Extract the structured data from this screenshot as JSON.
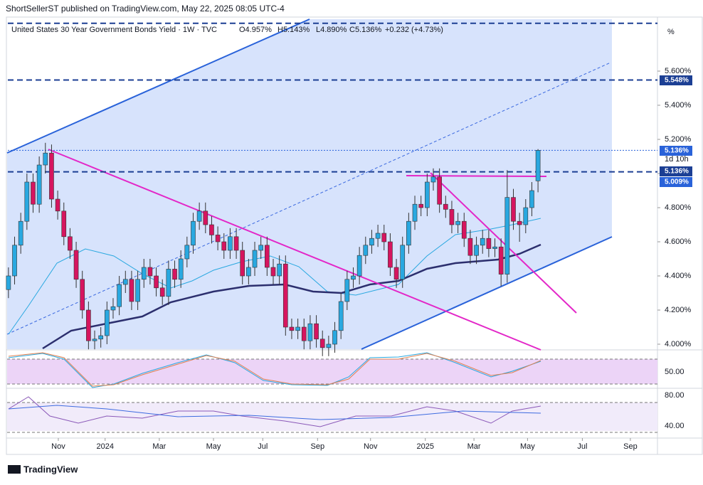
{
  "header": {
    "publisher": "ShortSellerST published on TradingView.com, May 22, 2025 08:05 UTC-4",
    "brand": "TradingView"
  },
  "chart_data": {
    "type": "candlestick",
    "title": "United States 30 Year Government Bonds Yield · 1W · TVC",
    "legend": {
      "open": "O4.957%",
      "high": "H5.143%",
      "low": "L4.890%",
      "close": "C5.136%",
      "change": "+0.232 (+4.73%)"
    },
    "unit": "%",
    "open": [
      4.32,
      4.4,
      4.58,
      4.72,
      4.95,
      4.82,
      5.05,
      5.12,
      4.85,
      4.78,
      4.63,
      4.55,
      4.38,
      4.2,
      4.02,
      4.03,
      4.05,
      4.2,
      4.22,
      4.35,
      4.38,
      4.25,
      4.38,
      4.45,
      4.4,
      4.33,
      4.28,
      4.44,
      4.38,
      4.5,
      4.58,
      4.72,
      4.78,
      4.7,
      4.64,
      4.6,
      4.55,
      4.63,
      4.55,
      4.4,
      4.45,
      4.55,
      4.58,
      4.45,
      4.4,
      4.47,
      4.1,
      4.08,
      4.1,
      4.02,
      4.12,
      4.03,
      3.98,
      4.0,
      4.08,
      4.25,
      4.38,
      4.4,
      4.52,
      4.58,
      4.62,
      4.65,
      4.6,
      4.45,
      4.38,
      4.58,
      4.72,
      4.82,
      4.8,
      4.95,
      4.98,
      4.82,
      4.79,
      4.7,
      4.72,
      4.62,
      4.52,
      4.58,
      4.62,
      4.56,
      4.57,
      4.41,
      4.86,
      4.72,
      4.7,
      4.8,
      4.957
    ],
    "high": [
      4.45,
      4.63,
      4.77,
      5.0,
      5.0,
      5.1,
      5.18,
      5.17,
      4.9,
      4.83,
      4.68,
      4.6,
      4.43,
      4.25,
      4.08,
      4.1,
      4.25,
      4.27,
      4.4,
      4.43,
      4.43,
      4.43,
      4.5,
      4.5,
      4.45,
      4.38,
      4.49,
      4.49,
      4.55,
      4.63,
      4.77,
      4.83,
      4.83,
      4.75,
      4.69,
      4.65,
      4.68,
      4.68,
      4.6,
      4.5,
      4.6,
      4.63,
      4.63,
      4.5,
      4.52,
      4.52,
      4.15,
      4.15,
      4.15,
      4.17,
      4.17,
      4.08,
      4.05,
      4.13,
      4.3,
      4.43,
      4.45,
      4.57,
      4.63,
      4.67,
      4.7,
      4.7,
      4.65,
      4.5,
      4.63,
      4.77,
      4.87,
      4.87,
      5.0,
      5.03,
      5.03,
      4.87,
      4.84,
      4.77,
      4.77,
      4.67,
      4.63,
      4.67,
      4.67,
      4.62,
      4.62,
      5.02,
      4.91,
      4.77,
      4.85,
      4.95,
      5.143
    ],
    "low": [
      4.27,
      4.35,
      4.53,
      4.67,
      4.77,
      4.77,
      5.0,
      4.8,
      4.73,
      4.58,
      4.5,
      4.33,
      4.15,
      3.97,
      3.97,
      3.98,
      4.0,
      4.15,
      4.17,
      4.3,
      4.2,
      4.2,
      4.33,
      4.35,
      4.28,
      4.23,
      4.23,
      4.33,
      4.33,
      4.45,
      4.53,
      4.67,
      4.65,
      4.59,
      4.55,
      4.5,
      4.5,
      4.5,
      4.35,
      4.35,
      4.4,
      4.5,
      4.4,
      4.35,
      4.35,
      4.05,
      4.03,
      4.03,
      3.97,
      3.97,
      3.98,
      3.93,
      3.93,
      3.95,
      4.03,
      4.2,
      4.33,
      4.35,
      4.47,
      4.53,
      4.57,
      4.55,
      4.4,
      4.33,
      4.33,
      4.53,
      4.67,
      4.75,
      4.75,
      4.9,
      4.77,
      4.74,
      4.65,
      4.65,
      4.57,
      4.47,
      4.47,
      4.53,
      4.51,
      4.51,
      4.34,
      4.36,
      4.67,
      4.6,
      4.65,
      4.75,
      4.89
    ],
    "close": [
      4.4,
      4.58,
      4.72,
      4.95,
      4.82,
      5.05,
      5.12,
      4.85,
      4.78,
      4.63,
      4.55,
      4.38,
      4.2,
      4.02,
      4.03,
      4.05,
      4.2,
      4.22,
      4.35,
      4.38,
      4.25,
      4.38,
      4.45,
      4.4,
      4.33,
      4.28,
      4.44,
      4.38,
      4.5,
      4.58,
      4.72,
      4.78,
      4.7,
      4.64,
      4.6,
      4.55,
      4.63,
      4.55,
      4.4,
      4.45,
      4.55,
      4.58,
      4.45,
      4.4,
      4.47,
      4.1,
      4.08,
      4.1,
      4.02,
      4.12,
      4.03,
      3.98,
      4.0,
      4.08,
      4.25,
      4.38,
      4.4,
      4.52,
      4.58,
      4.62,
      4.65,
      4.6,
      4.45,
      4.38,
      4.58,
      4.72,
      4.82,
      4.8,
      4.95,
      4.98,
      4.82,
      4.79,
      4.7,
      4.72,
      4.62,
      4.52,
      4.58,
      4.62,
      4.56,
      4.57,
      4.41,
      4.86,
      4.72,
      4.7,
      4.8,
      4.9,
      5.136
    ],
    "colors": {
      "up": "#29a8e0",
      "down": "#d6155f"
    },
    "xlim": [
      -0.1,
      105.4
    ],
    "xticks": [
      {
        "value": 8.1,
        "label": "Nov"
      },
      {
        "value": 15.7,
        "label": "2024"
      },
      {
        "value": 24.5,
        "label": "Mar"
      },
      {
        "value": 33.3,
        "label": "May"
      },
      {
        "value": 41.3,
        "label": "Jul"
      },
      {
        "value": 50.2,
        "label": "Sep"
      },
      {
        "value": 58.8,
        "label": "Nov"
      },
      {
        "value": 67.7,
        "label": "2025"
      },
      {
        "value": 75.6,
        "label": "Mar"
      },
      {
        "value": 84.3,
        "label": "May"
      },
      {
        "value": 93.2,
        "label": "Jul"
      },
      {
        "value": 101,
        "label": "Sep"
      }
    ],
    "ylim": [
      3.975,
      5.9
    ],
    "yticks": [
      {
        "value": 4.0,
        "label": "4.000%"
      },
      {
        "value": 4.2,
        "label": "4.200%"
      },
      {
        "value": 4.4,
        "label": "4.400%"
      },
      {
        "value": 4.6,
        "label": "4.600%"
      },
      {
        "value": 4.8,
        "label": "4.800%"
      },
      {
        "value": 5.0,
        "label": "5.000%"
      },
      {
        "value": 5.2,
        "label": "5.200%"
      },
      {
        "value": 5.4,
        "label": "5.400%"
      },
      {
        "value": 5.6,
        "label": "5.600%"
      }
    ],
    "levels": [
      5.88,
      5.548,
      5.136,
      5.01
    ],
    "price_tags": [
      "5.548%",
      "5.136%",
      "1d 10h",
      "5.136%",
      "5.009%"
    ],
    "pane_labels": [
      "50.00",
      "80.00",
      "40.00"
    ]
  }
}
